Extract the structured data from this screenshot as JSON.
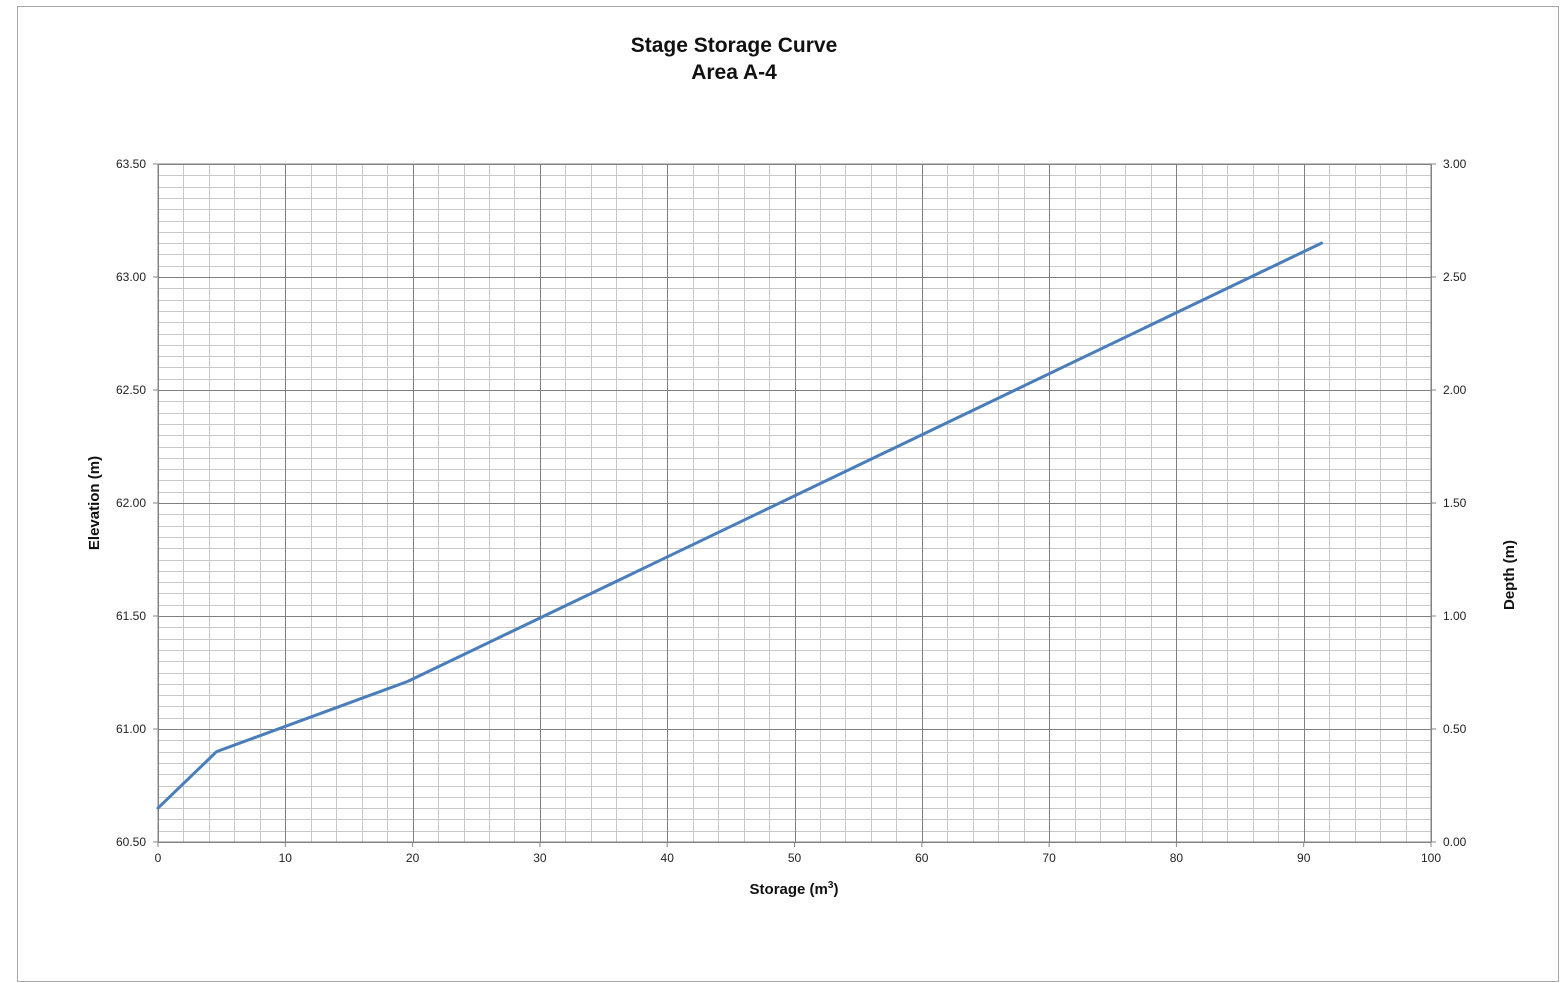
{
  "chart_data": {
    "type": "line",
    "title": "Stage Storage Curve",
    "subtitle": "Area A-4",
    "xlabel": "Storage (m",
    "xlabel_sup": "3",
    "xlabel_end": ")",
    "ylabel": "Elevation (m)",
    "y2label": "Depth (m)",
    "xlim": [
      0,
      100
    ],
    "ylim": [
      60.5,
      63.5
    ],
    "y2lim": [
      0.0,
      3.0
    ],
    "x_ticks": [
      "0",
      "10",
      "20",
      "30",
      "40",
      "50",
      "60",
      "70",
      "80",
      "90",
      "100"
    ],
    "y_ticks": [
      "60.50",
      "61.00",
      "61.50",
      "62.00",
      "62.50",
      "63.00",
      "63.50"
    ],
    "y2_ticks": [
      "0.00",
      "0.50",
      "1.00",
      "1.50",
      "2.00",
      "2.50",
      "3.00"
    ],
    "grid": true,
    "line_color": "#4a7eba",
    "series": [
      {
        "x": [
          0.0,
          4.6,
          19.6,
          91.4
        ],
        "y": [
          60.65,
          60.9,
          61.21,
          63.15
        ]
      }
    ]
  }
}
